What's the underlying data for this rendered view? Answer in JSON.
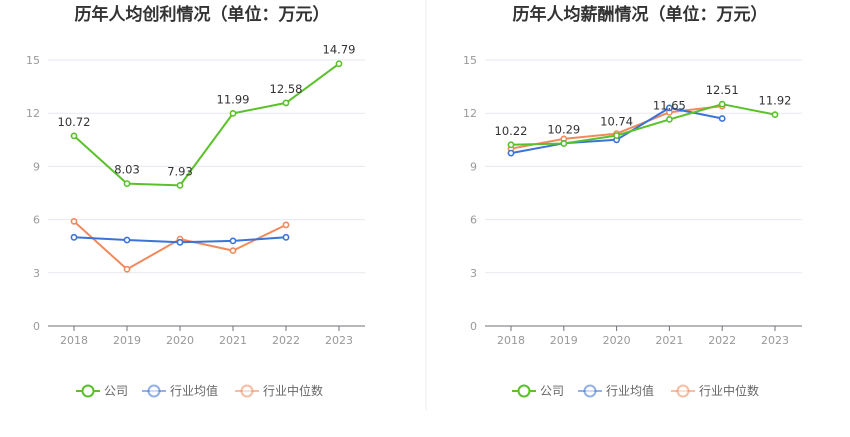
{
  "chart_data": [
    {
      "type": "line",
      "title": "历年人均创利情况（单位：万元）",
      "categories": [
        "2018",
        "2019",
        "2020",
        "2021",
        "2022",
        "2023"
      ],
      "ylim": [
        0,
        15
      ],
      "yticks": [
        0,
        3,
        6,
        9,
        12,
        15
      ],
      "grid": true,
      "legend_position": "bottom",
      "series": [
        {
          "name": "公司",
          "color": "#5ac12a",
          "values": [
            10.72,
            8.03,
            7.93,
            11.99,
            12.58,
            14.79
          ],
          "labels": [
            "10.72",
            "8.03",
            "7.93",
            "11.99",
            "12.58",
            "14.79"
          ]
        },
        {
          "name": "行业均值",
          "color": "#3b73d6",
          "values": [
            5.0,
            4.85,
            4.72,
            4.8,
            5.0,
            null
          ]
        },
        {
          "name": "行业中位数",
          "color": "#f08a5d",
          "values": [
            5.9,
            3.2,
            4.9,
            4.25,
            5.7,
            null
          ]
        }
      ]
    },
    {
      "type": "line",
      "title": "历年人均薪酬情况（单位：万元）",
      "categories": [
        "2018",
        "2019",
        "2020",
        "2021",
        "2022",
        "2023"
      ],
      "ylim": [
        0,
        15
      ],
      "yticks": [
        0,
        3,
        6,
        9,
        12,
        15
      ],
      "grid": true,
      "legend_position": "bottom",
      "series": [
        {
          "name": "公司",
          "color": "#5ac12a",
          "values": [
            10.22,
            10.29,
            10.74,
            11.65,
            12.51,
            11.92
          ],
          "labels": [
            "10.22",
            "10.29",
            "10.74",
            "11.65",
            "12.51",
            "11.92"
          ]
        },
        {
          "name": "行业均值",
          "color": "#3b73d6",
          "values": [
            9.75,
            10.3,
            10.5,
            12.3,
            11.7,
            null
          ]
        },
        {
          "name": "行业中位数",
          "color": "#f08a5d",
          "values": [
            10.0,
            10.55,
            10.85,
            12.05,
            12.4,
            null
          ]
        }
      ]
    }
  ]
}
